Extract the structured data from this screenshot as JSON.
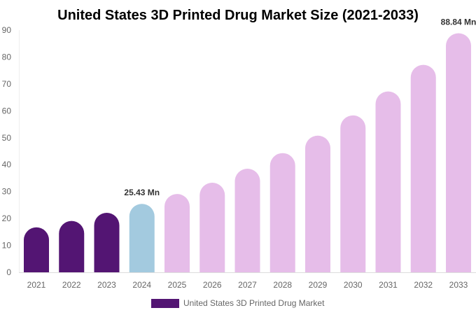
{
  "chart_data": {
    "type": "bar",
    "title": "United States 3D Printed Drug Market Size (2021-2033)",
    "categories": [
      "2021",
      "2022",
      "2023",
      "2024",
      "2025",
      "2026",
      "2027",
      "2028",
      "2029",
      "2030",
      "2031",
      "2032",
      "2033"
    ],
    "series": [
      {
        "name": "United States 3D Printed Drug Market",
        "values": [
          16.7,
          19.1,
          22.1,
          25.43,
          29.1,
          33.3,
          38.5,
          44.3,
          50.8,
          58.3,
          67.2,
          77.1,
          88.84
        ]
      }
    ],
    "data_labels": [
      {
        "category": "2024",
        "text": "25.43 Mn"
      },
      {
        "category": "2033",
        "text": "88.84 Mn"
      }
    ],
    "ylim": [
      0,
      90
    ],
    "yticks": [
      0,
      10,
      20,
      30,
      40,
      50,
      60,
      70,
      80,
      90
    ],
    "grid": false,
    "legend": "bottom",
    "colors": {
      "historical": "#531573",
      "base_year": "#a3cadf",
      "forecast": "#e6bde9"
    },
    "color_by_category": [
      "historical",
      "historical",
      "historical",
      "base_year",
      "forecast",
      "forecast",
      "forecast",
      "forecast",
      "forecast",
      "forecast",
      "forecast",
      "forecast",
      "forecast"
    ]
  }
}
